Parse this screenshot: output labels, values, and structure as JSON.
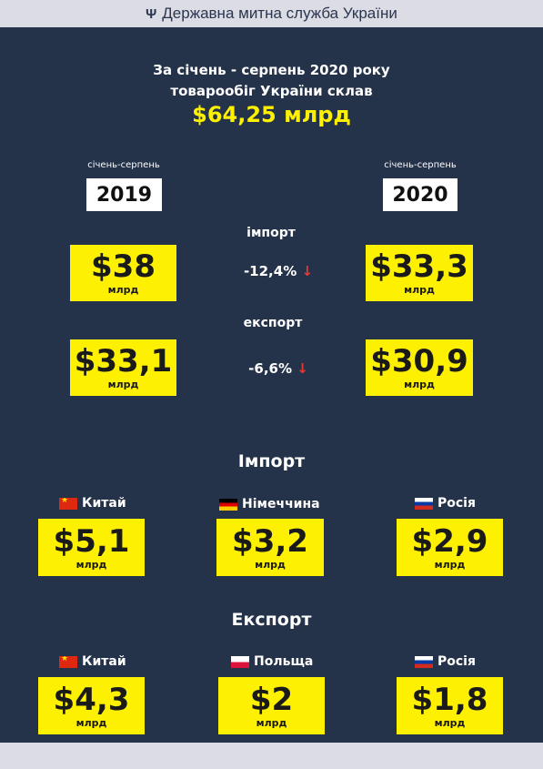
{
  "header": {
    "trident": "Ψ",
    "title": "Державна митна служба України"
  },
  "headline": {
    "line1": "За січень - серпень 2020 року",
    "line2": "товарообіг України склав",
    "total": "$64,25 млрд"
  },
  "period": {
    "left_label": "січень-серпень",
    "left_year": "2019",
    "right_label": "січень-серпень",
    "right_year": "2020"
  },
  "import_row": {
    "label": "імпорт",
    "left_value": "$38",
    "left_unit": "млрд",
    "change": "-12,4%",
    "arrow": "↓",
    "right_value": "$33,3",
    "right_unit": "млрд"
  },
  "export_row": {
    "label": "експорт",
    "left_value": "$33,1",
    "left_unit": "млрд",
    "change": "-6,6%",
    "arrow": "↓",
    "right_value": "$30,9",
    "right_unit": "млрд"
  },
  "import_section": {
    "title": "Імпорт",
    "countries": [
      {
        "name": "Китай",
        "flag": "china-flag-icon",
        "value": "$5,1",
        "unit": "млрд"
      },
      {
        "name": "Німеччина",
        "flag": "germany-flag-icon",
        "value": "$3,2",
        "unit": "млрд"
      },
      {
        "name": "Росія",
        "flag": "russia-flag-icon",
        "value": "$2,9",
        "unit": "млрд"
      }
    ]
  },
  "export_section": {
    "title": "Експорт",
    "countries": [
      {
        "name": "Китай",
        "flag": "china-flag-icon",
        "value": "$4,3",
        "unit": "млрд"
      },
      {
        "name": "Польща",
        "flag": "poland-flag-icon",
        "value": "$2",
        "unit": "млрд"
      },
      {
        "name": "Росія",
        "flag": "russia-flag-icon",
        "value": "$1,8",
        "unit": "млрд"
      }
    ]
  },
  "colors": {
    "background": "#24324a",
    "highlight": "#fdf000",
    "down_arrow": "#e53935",
    "bar": "#dcdce4"
  }
}
